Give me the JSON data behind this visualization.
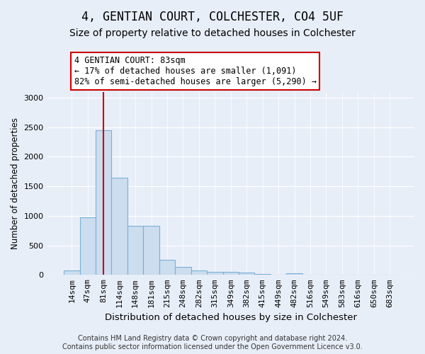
{
  "title1": "4, GENTIAN COURT, COLCHESTER, CO4 5UF",
  "title2": "Size of property relative to detached houses in Colchester",
  "xlabel": "Distribution of detached houses by size in Colchester",
  "ylabel": "Number of detached properties",
  "categories": [
    "14sqm",
    "47sqm",
    "81sqm",
    "114sqm",
    "148sqm",
    "181sqm",
    "215sqm",
    "248sqm",
    "282sqm",
    "315sqm",
    "349sqm",
    "382sqm",
    "415sqm",
    "449sqm",
    "482sqm",
    "516sqm",
    "549sqm",
    "583sqm",
    "616sqm",
    "650sqm",
    "683sqm"
  ],
  "values": [
    75,
    975,
    2450,
    1650,
    830,
    830,
    260,
    130,
    70,
    55,
    50,
    45,
    20,
    0,
    25,
    0,
    0,
    0,
    0,
    0,
    0
  ],
  "bar_color": "#ccddf0",
  "bar_edge_color": "#7bafd4",
  "vline_x_idx": 2,
  "vline_color": "#cc0000",
  "annotation_text": "4 GENTIAN COURT: 83sqm\n← 17% of detached houses are smaller (1,091)\n82% of semi-detached houses are larger (5,290) →",
  "annotation_box_color": "#ffffff",
  "annotation_box_edge": "#cc0000",
  "ylim": [
    0,
    3100
  ],
  "yticks": [
    0,
    500,
    1000,
    1500,
    2000,
    2500,
    3000
  ],
  "footnote": "Contains HM Land Registry data © Crown copyright and database right 2024.\nContains public sector information licensed under the Open Government Licence v3.0.",
  "background_color": "#e8eef8",
  "plot_bg_color": "#e8eef8",
  "title1_fontsize": 12,
  "title2_fontsize": 10,
  "xlabel_fontsize": 9.5,
  "ylabel_fontsize": 8.5,
  "tick_fontsize": 8,
  "annotation_fontsize": 8.5,
  "footnote_fontsize": 7
}
